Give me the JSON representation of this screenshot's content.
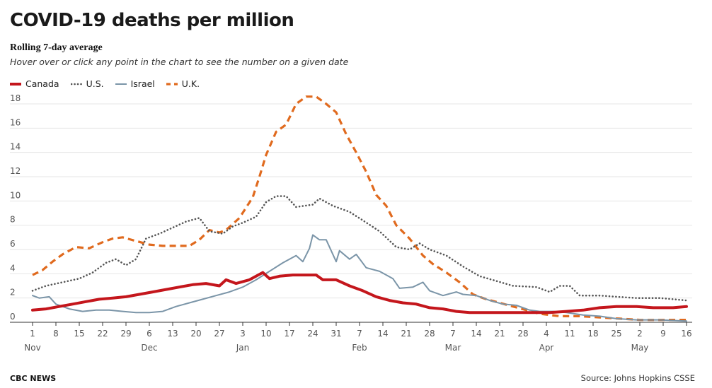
{
  "header": {
    "title": "COVID-19 deaths per million",
    "subtitle": "Rolling 7-day average",
    "note": "Hover over or click any point in the chart to see the number on a given date"
  },
  "footer": {
    "brand": "CBC NEWS",
    "source": "Source: Johns Hopkins CSSE"
  },
  "chart_data": {
    "type": "line",
    "title": "COVID-19 deaths per million",
    "subtitle": "Rolling 7-day average",
    "x_unit": "date (2020-11-01 to 2021-05-16)",
    "xlim": [
      "2020-11-01",
      "2021-05-16"
    ],
    "ylim": [
      0,
      19
    ],
    "y_ticks": [
      0,
      2,
      4,
      6,
      8,
      10,
      12,
      14,
      16,
      18
    ],
    "grid": "horizontal",
    "legend_position": "top-left",
    "x_ticks": [
      {
        "date": "2020-11-01",
        "day": "1",
        "month": "Nov"
      },
      {
        "date": "2020-11-08",
        "day": "8",
        "month": ""
      },
      {
        "date": "2020-11-15",
        "day": "15",
        "month": ""
      },
      {
        "date": "2020-11-22",
        "day": "22",
        "month": ""
      },
      {
        "date": "2020-11-29",
        "day": "29",
        "month": ""
      },
      {
        "date": "2020-12-06",
        "day": "6",
        "month": "Dec"
      },
      {
        "date": "2020-12-13",
        "day": "13",
        "month": ""
      },
      {
        "date": "2020-12-20",
        "day": "20",
        "month": ""
      },
      {
        "date": "2020-12-27",
        "day": "27",
        "month": ""
      },
      {
        "date": "2021-01-03",
        "day": "3",
        "month": "Jan"
      },
      {
        "date": "2021-01-10",
        "day": "10",
        "month": ""
      },
      {
        "date": "2021-01-17",
        "day": "17",
        "month": ""
      },
      {
        "date": "2021-01-24",
        "day": "24",
        "month": ""
      },
      {
        "date": "2021-01-31",
        "day": "31",
        "month": ""
      },
      {
        "date": "2021-02-07",
        "day": "7",
        "month": "Feb"
      },
      {
        "date": "2021-02-14",
        "day": "14",
        "month": ""
      },
      {
        "date": "2021-02-21",
        "day": "21",
        "month": ""
      },
      {
        "date": "2021-02-28",
        "day": "28",
        "month": ""
      },
      {
        "date": "2021-03-07",
        "day": "7",
        "month": "Mar"
      },
      {
        "date": "2021-03-14",
        "day": "14",
        "month": ""
      },
      {
        "date": "2021-03-21",
        "day": "21",
        "month": ""
      },
      {
        "date": "2021-03-28",
        "day": "28",
        "month": ""
      },
      {
        "date": "2021-04-04",
        "day": "4",
        "month": "Apr"
      },
      {
        "date": "2021-04-11",
        "day": "11",
        "month": ""
      },
      {
        "date": "2021-04-18",
        "day": "18",
        "month": ""
      },
      {
        "date": "2021-04-25",
        "day": "25",
        "month": ""
      },
      {
        "date": "2021-05-02",
        "day": "2",
        "month": "May"
      },
      {
        "date": "2021-05-09",
        "day": "9",
        "month": ""
      },
      {
        "date": "2021-05-16",
        "day": "16",
        "month": ""
      }
    ],
    "series": [
      {
        "name": "Canada",
        "color": "#c4161c",
        "style": "solid",
        "width": 4,
        "points": [
          [
            "2020-11-01",
            1.0
          ],
          [
            "2020-11-05",
            1.1
          ],
          [
            "2020-11-09",
            1.3
          ],
          [
            "2020-11-13",
            1.5
          ],
          [
            "2020-11-17",
            1.7
          ],
          [
            "2020-11-21",
            1.9
          ],
          [
            "2020-11-25",
            2.0
          ],
          [
            "2020-11-29",
            2.1
          ],
          [
            "2020-12-03",
            2.3
          ],
          [
            "2020-12-07",
            2.5
          ],
          [
            "2020-12-11",
            2.7
          ],
          [
            "2020-12-15",
            2.9
          ],
          [
            "2020-12-19",
            3.1
          ],
          [
            "2020-12-23",
            3.2
          ],
          [
            "2020-12-27",
            3.0
          ],
          [
            "2020-12-29",
            3.5
          ],
          [
            "2021-01-01",
            3.2
          ],
          [
            "2021-01-05",
            3.5
          ],
          [
            "2021-01-09",
            4.1
          ],
          [
            "2021-01-11",
            3.6
          ],
          [
            "2021-01-14",
            3.8
          ],
          [
            "2021-01-18",
            3.9
          ],
          [
            "2021-01-22",
            3.9
          ],
          [
            "2021-01-25",
            3.9
          ],
          [
            "2021-01-27",
            3.5
          ],
          [
            "2021-01-31",
            3.5
          ],
          [
            "2021-02-04",
            3.0
          ],
          [
            "2021-02-08",
            2.6
          ],
          [
            "2021-02-12",
            2.1
          ],
          [
            "2021-02-16",
            1.8
          ],
          [
            "2021-02-20",
            1.6
          ],
          [
            "2021-02-24",
            1.5
          ],
          [
            "2021-02-28",
            1.2
          ],
          [
            "2021-03-04",
            1.1
          ],
          [
            "2021-03-08",
            0.9
          ],
          [
            "2021-03-12",
            0.8
          ],
          [
            "2021-03-18",
            0.8
          ],
          [
            "2021-03-24",
            0.8
          ],
          [
            "2021-03-28",
            0.8
          ],
          [
            "2021-04-01",
            0.8
          ],
          [
            "2021-04-05",
            0.8
          ],
          [
            "2021-04-10",
            0.9
          ],
          [
            "2021-04-15",
            1.0
          ],
          [
            "2021-04-20",
            1.2
          ],
          [
            "2021-04-25",
            1.3
          ],
          [
            "2021-05-01",
            1.3
          ],
          [
            "2021-05-06",
            1.2
          ],
          [
            "2021-05-12",
            1.2
          ],
          [
            "2021-05-16",
            1.3
          ]
        ]
      },
      {
        "name": "U.S.",
        "color": "#555555",
        "style": "dotted",
        "width": 2.6,
        "points": [
          [
            "2020-11-01",
            2.6
          ],
          [
            "2020-11-05",
            3.0
          ],
          [
            "2020-11-10",
            3.3
          ],
          [
            "2020-11-15",
            3.6
          ],
          [
            "2020-11-19",
            4.1
          ],
          [
            "2020-11-23",
            4.9
          ],
          [
            "2020-11-26",
            5.2
          ],
          [
            "2020-11-29",
            4.7
          ],
          [
            "2020-12-02",
            5.2
          ],
          [
            "2020-12-05",
            6.9
          ],
          [
            "2020-12-09",
            7.3
          ],
          [
            "2020-12-13",
            7.8
          ],
          [
            "2020-12-17",
            8.3
          ],
          [
            "2020-12-21",
            8.6
          ],
          [
            "2020-12-24",
            7.5
          ],
          [
            "2020-12-28",
            7.3
          ],
          [
            "2020-12-31",
            7.9
          ],
          [
            "2021-01-03",
            8.2
          ],
          [
            "2021-01-07",
            8.7
          ],
          [
            "2021-01-10",
            9.9
          ],
          [
            "2021-01-13",
            10.4
          ],
          [
            "2021-01-16",
            10.4
          ],
          [
            "2021-01-19",
            9.5
          ],
          [
            "2021-01-24",
            9.7
          ],
          [
            "2021-01-26",
            10.2
          ],
          [
            "2021-01-30",
            9.6
          ],
          [
            "2021-02-04",
            9.1
          ],
          [
            "2021-02-08",
            8.4
          ],
          [
            "2021-02-13",
            7.5
          ],
          [
            "2021-02-18",
            6.2
          ],
          [
            "2021-02-22",
            6.0
          ],
          [
            "2021-02-25",
            6.5
          ],
          [
            "2021-02-28",
            6.0
          ],
          [
            "2021-03-05",
            5.5
          ],
          [
            "2021-03-10",
            4.6
          ],
          [
            "2021-03-15",
            3.8
          ],
          [
            "2021-03-20",
            3.4
          ],
          [
            "2021-03-25",
            3.0
          ],
          [
            "2021-04-01",
            2.9
          ],
          [
            "2021-04-05",
            2.5
          ],
          [
            "2021-04-08",
            3.0
          ],
          [
            "2021-04-11",
            3.0
          ],
          [
            "2021-04-14",
            2.2
          ],
          [
            "2021-04-20",
            2.2
          ],
          [
            "2021-04-25",
            2.1
          ],
          [
            "2021-05-01",
            2.0
          ],
          [
            "2021-05-08",
            2.0
          ],
          [
            "2021-05-16",
            1.8
          ]
        ]
      },
      {
        "name": "Israel",
        "color": "#7b95a8",
        "style": "solid",
        "width": 2,
        "points": [
          [
            "2020-11-01",
            2.2
          ],
          [
            "2020-11-03",
            2.0
          ],
          [
            "2020-11-06",
            2.1
          ],
          [
            "2020-11-08",
            1.5
          ],
          [
            "2020-11-12",
            1.1
          ],
          [
            "2020-11-16",
            0.9
          ],
          [
            "2020-11-20",
            1.0
          ],
          [
            "2020-11-24",
            1.0
          ],
          [
            "2020-11-28",
            0.9
          ],
          [
            "2020-12-02",
            0.8
          ],
          [
            "2020-12-06",
            0.8
          ],
          [
            "2020-12-10",
            0.9
          ],
          [
            "2020-12-14",
            1.3
          ],
          [
            "2020-12-18",
            1.6
          ],
          [
            "2020-12-22",
            1.9
          ],
          [
            "2020-12-26",
            2.2
          ],
          [
            "2020-12-30",
            2.5
          ],
          [
            "2021-01-03",
            2.9
          ],
          [
            "2021-01-07",
            3.5
          ],
          [
            "2021-01-11",
            4.2
          ],
          [
            "2021-01-15",
            4.9
          ],
          [
            "2021-01-19",
            5.5
          ],
          [
            "2021-01-21",
            5.0
          ],
          [
            "2021-01-23",
            6.1
          ],
          [
            "2021-01-24",
            7.2
          ],
          [
            "2021-01-26",
            6.8
          ],
          [
            "2021-01-28",
            6.8
          ],
          [
            "2021-01-31",
            5.0
          ],
          [
            "2021-02-01",
            5.9
          ],
          [
            "2021-02-04",
            5.2
          ],
          [
            "2021-02-06",
            5.6
          ],
          [
            "2021-02-09",
            4.5
          ],
          [
            "2021-02-13",
            4.2
          ],
          [
            "2021-02-17",
            3.6
          ],
          [
            "2021-02-19",
            2.8
          ],
          [
            "2021-02-23",
            2.9
          ],
          [
            "2021-02-26",
            3.3
          ],
          [
            "2021-02-28",
            2.6
          ],
          [
            "2021-03-04",
            2.2
          ],
          [
            "2021-03-08",
            2.5
          ],
          [
            "2021-03-10",
            2.3
          ],
          [
            "2021-03-14",
            2.2
          ],
          [
            "2021-03-18",
            1.8
          ],
          [
            "2021-03-22",
            1.5
          ],
          [
            "2021-03-26",
            1.4
          ],
          [
            "2021-03-30",
            1.0
          ],
          [
            "2021-04-02",
            0.9
          ],
          [
            "2021-04-06",
            0.9
          ],
          [
            "2021-04-10",
            0.8
          ],
          [
            "2021-04-15",
            0.6
          ],
          [
            "2021-04-20",
            0.5
          ],
          [
            "2021-04-25",
            0.3
          ],
          [
            "2021-05-01",
            0.2
          ],
          [
            "2021-05-08",
            0.2
          ],
          [
            "2021-05-16",
            0.1
          ]
        ]
      },
      {
        "name": "U.K.",
        "color": "#e06a1e",
        "style": "dashed",
        "width": 3.2,
        "points": [
          [
            "2020-11-01",
            3.9
          ],
          [
            "2020-11-04",
            4.3
          ],
          [
            "2020-11-07",
            5.0
          ],
          [
            "2020-11-10",
            5.6
          ],
          [
            "2020-11-12",
            5.9
          ],
          [
            "2020-11-14",
            6.2
          ],
          [
            "2020-11-18",
            6.1
          ],
          [
            "2020-11-22",
            6.6
          ],
          [
            "2020-11-25",
            6.9
          ],
          [
            "2020-11-28",
            7.0
          ],
          [
            "2020-12-02",
            6.7
          ],
          [
            "2020-12-06",
            6.4
          ],
          [
            "2020-12-10",
            6.3
          ],
          [
            "2020-12-14",
            6.3
          ],
          [
            "2020-12-18",
            6.3
          ],
          [
            "2020-12-21",
            6.8
          ],
          [
            "2020-12-24",
            7.6
          ],
          [
            "2020-12-27",
            7.4
          ],
          [
            "2020-12-29",
            7.6
          ],
          [
            "2021-01-02",
            8.6
          ],
          [
            "2021-01-06",
            10.3
          ],
          [
            "2021-01-08",
            12.0
          ],
          [
            "2021-01-10",
            13.8
          ],
          [
            "2021-01-13",
            15.7
          ],
          [
            "2021-01-16",
            16.3
          ],
          [
            "2021-01-19",
            18.0
          ],
          [
            "2021-01-22",
            18.6
          ],
          [
            "2021-01-25",
            18.6
          ],
          [
            "2021-01-28",
            18.0
          ],
          [
            "2021-01-31",
            17.3
          ],
          [
            "2021-02-03",
            15.5
          ],
          [
            "2021-02-06",
            14.0
          ],
          [
            "2021-02-09",
            12.4
          ],
          [
            "2021-02-12",
            10.5
          ],
          [
            "2021-02-15",
            9.6
          ],
          [
            "2021-02-18",
            8.0
          ],
          [
            "2021-02-22",
            6.9
          ],
          [
            "2021-02-26",
            5.5
          ],
          [
            "2021-03-01",
            4.8
          ],
          [
            "2021-03-05",
            4.1
          ],
          [
            "2021-03-09",
            3.3
          ],
          [
            "2021-03-13",
            2.3
          ],
          [
            "2021-03-17",
            1.9
          ],
          [
            "2021-03-21",
            1.6
          ],
          [
            "2021-03-25",
            1.3
          ],
          [
            "2021-03-29",
            1.0
          ],
          [
            "2021-04-02",
            0.7
          ],
          [
            "2021-04-08",
            0.5
          ],
          [
            "2021-04-14",
            0.5
          ],
          [
            "2021-04-20",
            0.4
          ],
          [
            "2021-04-26",
            0.3
          ],
          [
            "2021-05-02",
            0.2
          ],
          [
            "2021-05-08",
            0.2
          ],
          [
            "2021-05-16",
            0.2
          ]
        ]
      }
    ]
  }
}
